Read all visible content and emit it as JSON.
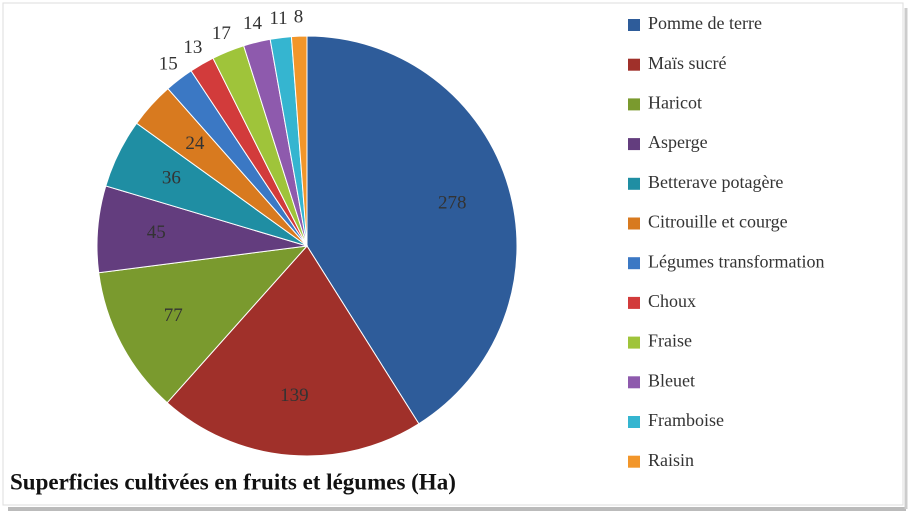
{
  "chart_data": {
    "type": "pie",
    "title": "Superficies cultivées en fruits et légumes (Ha)",
    "categories": [
      "Pomme de terre",
      "Maïs sucré",
      "Haricot",
      "Asperge",
      "Betterave potagère",
      "Citrouille et courge",
      "Légumes transformation",
      "Choux",
      "Fraise",
      "Bleuet",
      "Framboise",
      "Raisin"
    ],
    "values": [
      278,
      139,
      77,
      45,
      36,
      24,
      15,
      13,
      17,
      14,
      11,
      8
    ],
    "colors": [
      "#2e5c9a",
      "#a0302a",
      "#7a9a2e",
      "#633d7e",
      "#1f8ea3",
      "#d87a1f",
      "#3b78c4",
      "#d23b3b",
      "#9fc43a",
      "#8e5aad",
      "#35b5d0",
      "#f2962a"
    ],
    "legend": "right"
  }
}
